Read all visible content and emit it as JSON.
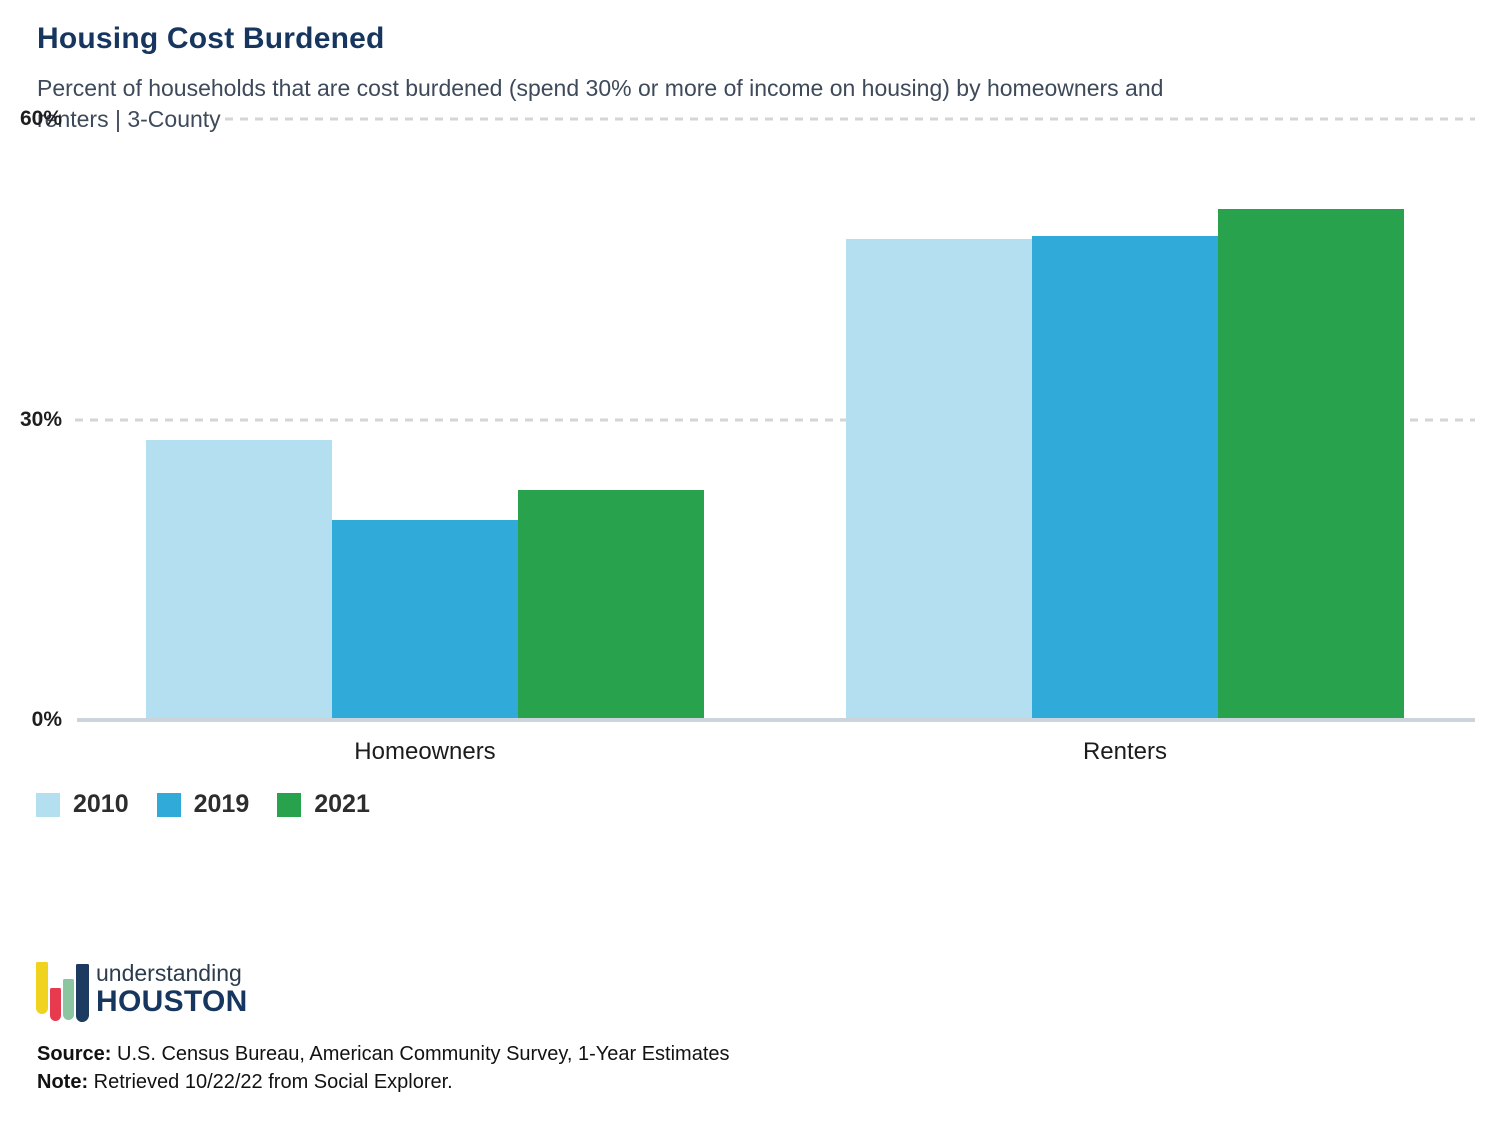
{
  "chart_data": {
    "type": "bar",
    "title": "Housing Cost Burdened",
    "subtitle_lines": [
      "Percent of households that are cost burdened (spend 30% or more of income on housing) by homeowners and",
      "renters | 3-County"
    ],
    "categories": [
      "Homeowners",
      "Renters"
    ],
    "series": [
      {
        "name": "2010",
        "color": "#b4dff0",
        "values": [
          28,
          48
        ]
      },
      {
        "name": "2019",
        "color": "#2faad9",
        "values": [
          20,
          48.3
        ]
      },
      {
        "name": "2021",
        "color": "#28a24c",
        "values": [
          23,
          51
        ]
      }
    ],
    "ylim": [
      0,
      60
    ],
    "yticks": [
      {
        "value": 0,
        "label": "0%"
      },
      {
        "value": 30,
        "label": "30%"
      },
      {
        "value": 60,
        "label": "60%"
      }
    ],
    "grid": "horizontal-dashed",
    "legend_position": "bottom-left"
  },
  "footer": {
    "logo_line1": "understanding",
    "logo_line2": "HOUSTON",
    "source_label": "Source:",
    "source_text": " U.S. Census Bureau, American Community Survey, 1-Year Estimates",
    "note_label": "Note:",
    "note_text": " Retrieved 10/22/22 from Social Explorer."
  },
  "colors": {
    "title": "#17365f",
    "subtitle": "#3e4a5a",
    "gridline": "#d5d5d5",
    "axis_line": "#cbd4dd",
    "series_2010": "#b4dff0",
    "series_2019": "#2faad9",
    "series_2021": "#28a24c",
    "logo_yellow": "#efd31f",
    "logo_red": "#e83a4e",
    "logo_green": "#8cc6a0",
    "logo_navy": "#1d3b60"
  }
}
